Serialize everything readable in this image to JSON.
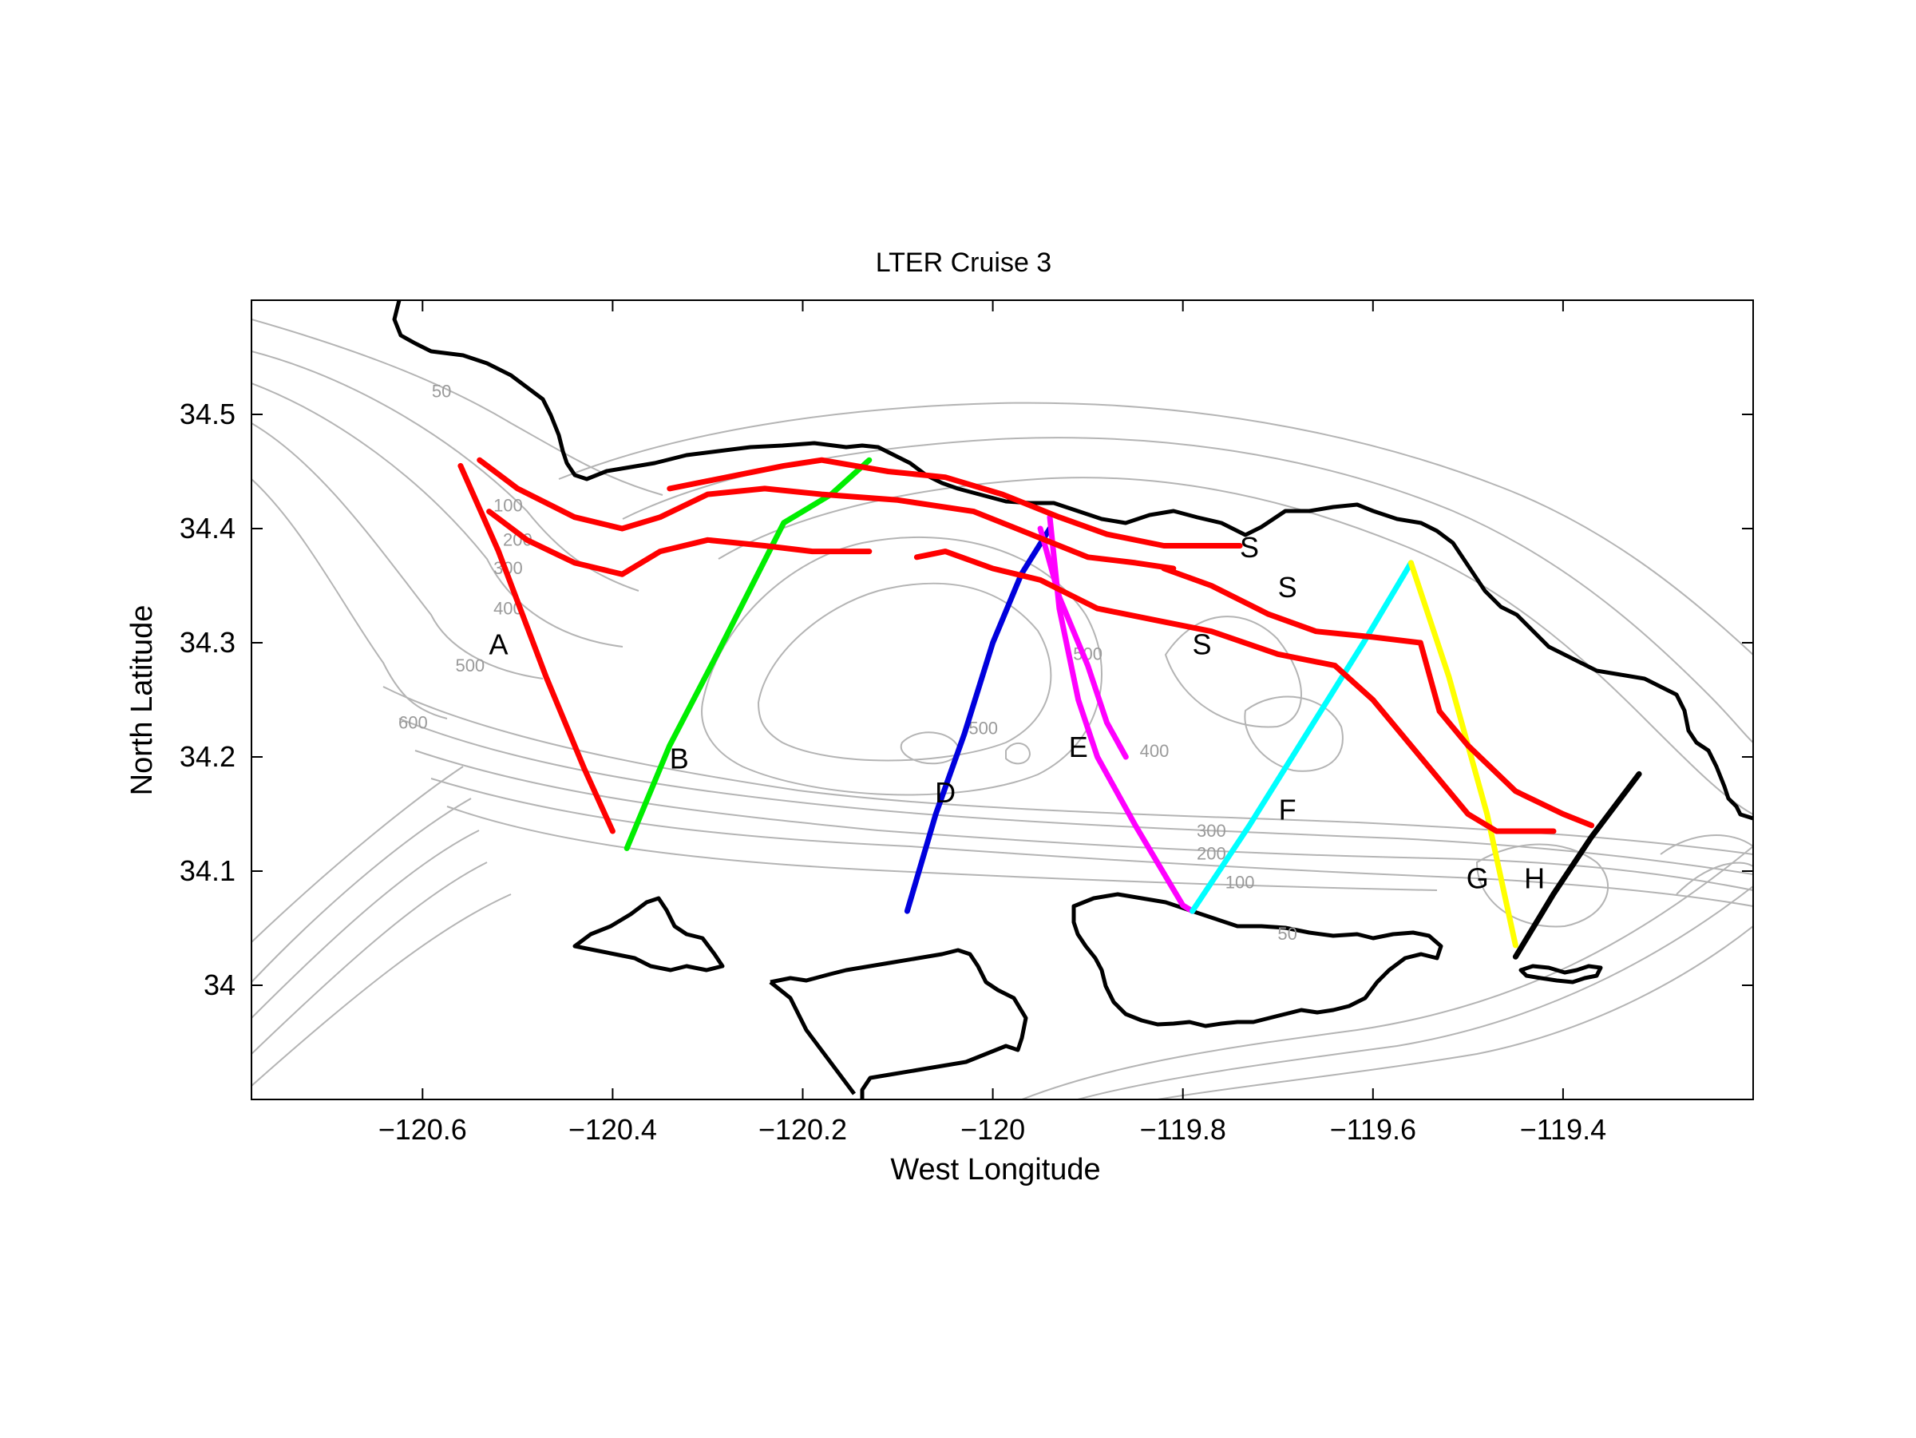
{
  "title": "LTER Cruise 3",
  "xlabel": "West Longitude",
  "ylabel": "North Latitude",
  "axes": {
    "xlim": [
      -120.78,
      -119.2
    ],
    "ylim": [
      33.9,
      34.6
    ],
    "xticks": [
      -120.6,
      -120.4,
      -120.2,
      -120.0,
      -119.8,
      -119.6,
      -119.4
    ],
    "xtick_labels": [
      "−120.6",
      "−120.4",
      "−120.2",
      "−120",
      "−119.8",
      "−119.6",
      "−119.4"
    ],
    "yticks": [
      34.0,
      34.1,
      34.2,
      34.3,
      34.4,
      34.5
    ],
    "ytick_labels": [
      "34",
      "34.1",
      "34.2",
      "34.3",
      "34.4",
      "34.5"
    ]
  },
  "colors": {
    "A": "#ff0000",
    "S": "#ff0000",
    "B": "#00ee00",
    "D": "#0000dd",
    "E": "#ff00ff",
    "F": "#00ffff",
    "G": "#ffff00",
    "H": "#000000",
    "coast": "#000000",
    "contour": "#b4b4b4"
  },
  "transects": [
    {
      "name": "A",
      "color": "#ff0000",
      "points": [
        [
          -120.56,
          34.455
        ],
        [
          -120.52,
          34.38
        ],
        [
          -120.47,
          34.27
        ],
        [
          -120.43,
          34.19
        ],
        [
          -120.4,
          34.135
        ]
      ]
    },
    {
      "name": "B",
      "color": "#00ee00",
      "points": [
        [
          -120.385,
          34.12
        ],
        [
          -120.34,
          34.21
        ],
        [
          -120.29,
          34.29
        ],
        [
          -120.22,
          34.405
        ],
        [
          -120.17,
          34.43
        ],
        [
          -120.13,
          34.46
        ]
      ]
    },
    {
      "name": "D",
      "color": "#0000dd",
      "points": [
        [
          -120.09,
          34.065
        ],
        [
          -120.06,
          34.15
        ],
        [
          -120.03,
          34.22
        ],
        [
          -120.0,
          34.3
        ],
        [
          -119.97,
          34.36
        ],
        [
          -119.94,
          34.4
        ]
      ]
    },
    {
      "name": "E",
      "color": "#ff00ff",
      "points": [
        [
          -119.94,
          34.41
        ],
        [
          -119.93,
          34.33
        ],
        [
          -119.91,
          34.25
        ],
        [
          -119.89,
          34.2
        ],
        [
          -119.85,
          34.14
        ],
        [
          -119.8,
          34.07
        ],
        [
          -119.79,
          34.065
        ]
      ]
    },
    {
      "name": "E",
      "color": "#ff00ff",
      "points": [
        [
          -119.95,
          34.4
        ],
        [
          -119.93,
          34.34
        ],
        [
          -119.9,
          34.28
        ],
        [
          -119.88,
          34.23
        ],
        [
          -119.86,
          34.2
        ]
      ]
    },
    {
      "name": "F",
      "color": "#00ffff",
      "points": [
        [
          -119.79,
          34.065
        ],
        [
          -119.73,
          34.14
        ],
        [
          -119.67,
          34.22
        ],
        [
          -119.61,
          34.3
        ],
        [
          -119.56,
          34.37
        ]
      ]
    },
    {
      "name": "G",
      "color": "#ffff00",
      "points": [
        [
          -119.56,
          34.37
        ],
        [
          -119.52,
          34.27
        ],
        [
          -119.48,
          34.15
        ],
        [
          -119.45,
          34.035
        ]
      ]
    },
    {
      "name": "H",
      "color": "#000000",
      "points": [
        [
          -119.45,
          34.025
        ],
        [
          -119.41,
          34.08
        ],
        [
          -119.37,
          34.13
        ],
        [
          -119.32,
          34.185
        ]
      ]
    },
    {
      "name": "S",
      "color": "#ff0000",
      "points": [
        [
          -120.54,
          34.46
        ],
        [
          -120.5,
          34.435
        ],
        [
          -120.44,
          34.41
        ],
        [
          -120.39,
          34.4
        ],
        [
          -120.35,
          34.41
        ],
        [
          -120.3,
          34.43
        ],
        [
          -120.24,
          34.435
        ],
        [
          -120.18,
          34.43
        ],
        [
          -120.1,
          34.425
        ],
        [
          -120.02,
          34.415
        ],
        [
          -119.96,
          34.395
        ],
        [
          -119.9,
          34.375
        ],
        [
          -119.85,
          34.37
        ],
        [
          -119.81,
          34.365
        ]
      ]
    },
    {
      "name": "S",
      "color": "#ff0000",
      "points": [
        [
          -120.53,
          34.415
        ],
        [
          -120.49,
          34.39
        ],
        [
          -120.44,
          34.37
        ],
        [
          -120.39,
          34.36
        ],
        [
          -120.35,
          34.38
        ],
        [
          -120.3,
          34.39
        ],
        [
          -120.24,
          34.385
        ],
        [
          -120.19,
          34.38
        ],
        [
          -120.13,
          34.38
        ]
      ]
    },
    {
      "name": "S",
      "color": "#ff0000",
      "points": [
        [
          -120.34,
          34.435
        ],
        [
          -120.28,
          34.445
        ],
        [
          -120.22,
          34.455
        ],
        [
          -120.18,
          34.46
        ],
        [
          -120.11,
          34.45
        ],
        [
          -120.05,
          34.445
        ],
        [
          -119.99,
          34.43
        ],
        [
          -119.93,
          34.41
        ],
        [
          -119.88,
          34.395
        ],
        [
          -119.82,
          34.385
        ],
        [
          -119.77,
          34.385
        ],
        [
          -119.74,
          34.385
        ]
      ]
    },
    {
      "name": "S",
      "color": "#ff0000",
      "points": [
        [
          -120.08,
          34.375
        ],
        [
          -120.05,
          34.38
        ],
        [
          -120.0,
          34.365
        ],
        [
          -119.95,
          34.355
        ],
        [
          -119.89,
          34.33
        ],
        [
          -119.83,
          34.32
        ],
        [
          -119.77,
          34.31
        ],
        [
          -119.7,
          34.29
        ],
        [
          -119.64,
          34.28
        ],
        [
          -119.6,
          34.25
        ],
        [
          -119.55,
          34.2
        ],
        [
          -119.5,
          34.15
        ],
        [
          -119.47,
          34.135
        ],
        [
          -119.41,
          34.135
        ]
      ]
    },
    {
      "name": "S",
      "color": "#ff0000",
      "points": [
        [
          -119.82,
          34.365
        ],
        [
          -119.77,
          34.35
        ],
        [
          -119.71,
          34.325
        ],
        [
          -119.66,
          34.31
        ],
        [
          -119.6,
          34.305
        ],
        [
          -119.55,
          34.3
        ],
        [
          -119.53,
          34.24
        ],
        [
          -119.5,
          34.21
        ],
        [
          -119.45,
          34.17
        ],
        [
          -119.4,
          34.15
        ],
        [
          -119.37,
          34.14
        ]
      ]
    }
  ],
  "transect_labels": [
    {
      "text": "A",
      "lon": -120.52,
      "lat": 34.29
    },
    {
      "text": "B",
      "lon": -120.33,
      "lat": 34.19
    },
    {
      "text": "D",
      "lon": -120.05,
      "lat": 34.16
    },
    {
      "text": "E",
      "lon": -119.91,
      "lat": 34.2
    },
    {
      "text": "F",
      "lon": -119.69,
      "lat": 34.145
    },
    {
      "text": "G",
      "lon": -119.49,
      "lat": 34.085
    },
    {
      "text": "H",
      "lon": -119.43,
      "lat": 34.085
    },
    {
      "text": "S",
      "lon": -119.73,
      "lat": 34.375
    },
    {
      "text": "S",
      "lon": -119.69,
      "lat": 34.34
    },
    {
      "text": "S",
      "lon": -119.78,
      "lat": 34.29
    }
  ],
  "contour_labels": [
    {
      "text": "50",
      "lon": -120.58,
      "lat": 34.515
    },
    {
      "text": "100",
      "lon": -120.51,
      "lat": 34.415
    },
    {
      "text": "200",
      "lon": -120.5,
      "lat": 34.385
    },
    {
      "text": "300",
      "lon": -120.51,
      "lat": 34.36
    },
    {
      "text": "400",
      "lon": -120.51,
      "lat": 34.325
    },
    {
      "text": "500",
      "lon": -120.55,
      "lat": 34.275
    },
    {
      "text": "600",
      "lon": -120.61,
      "lat": 34.225
    },
    {
      "text": "500",
      "lon": -120.01,
      "lat": 34.22
    },
    {
      "text": "500",
      "lon": -119.9,
      "lat": 34.285
    },
    {
      "text": "400",
      "lon": -119.83,
      "lat": 34.2
    },
    {
      "text": "300",
      "lon": -119.77,
      "lat": 34.13
    },
    {
      "text": "200",
      "lon": -119.77,
      "lat": 34.11
    },
    {
      "text": "100",
      "lon": -119.74,
      "lat": 34.085
    },
    {
      "text": "50",
      "lon": -119.69,
      "lat": 34.04
    }
  ]
}
